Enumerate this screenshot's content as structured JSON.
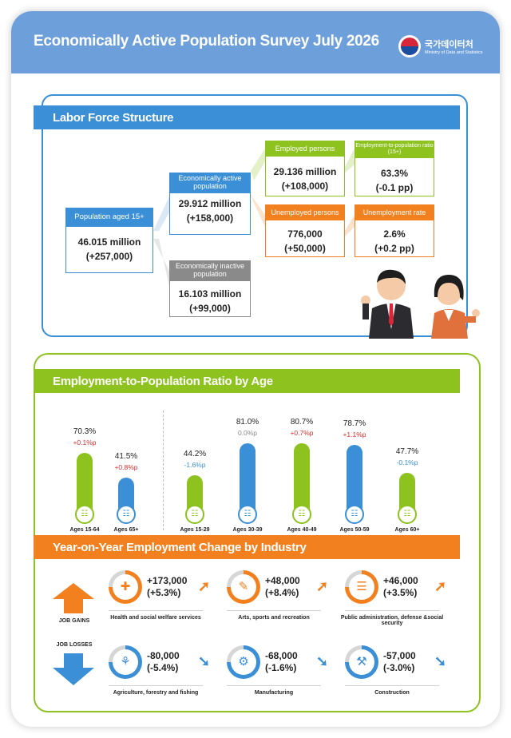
{
  "header": {
    "title": "Economically Active Population Survey July 2026",
    "logo_ko": "국가데이터처",
    "logo_en": "Ministry of Data and Statistics"
  },
  "labor": {
    "section_title": "Labor Force Structure",
    "pop15": {
      "label": "Population aged 15+",
      "value": "46.015 million",
      "change": "(+257,000)"
    },
    "active": {
      "label": "Economically active population",
      "value": "29.912 million",
      "change": "(+158,000)"
    },
    "inactive": {
      "label": "Economically inactive population",
      "value": "16.103 million",
      "change": "(+99,000)"
    },
    "employed": {
      "label": "Employed persons",
      "value": "29.136 million",
      "change": "(+108,000)"
    },
    "emp_ratio": {
      "label": "Employment-to-population ratio (15+)",
      "value": "63.3%",
      "change": "(-0.1 pp)"
    },
    "unemployed": {
      "label": "Unemployed persons",
      "value": "776,000",
      "change": "(+50,000)"
    },
    "unemp_rate": {
      "label": "Unemployment rate",
      "value": "2.6%",
      "change": "(+0.2 pp)"
    }
  },
  "age_section": {
    "title": "Employment-to-Population Ratio by Age"
  },
  "chart_data": {
    "type": "bar",
    "categories": [
      "Ages 15-64",
      "Ages 65+",
      "Ages 15-29",
      "Ages 30-39",
      "Ages 40-49",
      "Ages 50-59",
      "Ages 60+"
    ],
    "values": [
      70.3,
      41.5,
      44.2,
      81.0,
      80.7,
      78.7,
      47.7
    ],
    "value_labels": [
      "70.3%",
      "41.5%",
      "44.2%",
      "81.0%",
      "80.7%",
      "78.7%",
      "47.7%"
    ],
    "changes": [
      "+0.1%p",
      "+0.8%p",
      "-1.6%p",
      "0.0%p",
      "+0.7%p",
      "+1.1%p",
      "-0.1%p"
    ],
    "colors": [
      "#8dc21f",
      "#3a8fd6",
      "#8dc21f",
      "#3a8fd6",
      "#8dc21f",
      "#3a8fd6",
      "#8dc21f"
    ],
    "change_colors": [
      "#d62f2f",
      "#d62f2f",
      "#3a8fd6",
      "#888888",
      "#d62f2f",
      "#d62f2f",
      "#3a8fd6"
    ],
    "ylim": [
      0,
      100
    ]
  },
  "industry": {
    "section_title": "Year-on-Year Employment Change by Industry",
    "gains_label": "JOB GAINS",
    "losses_label": "JOB LOSSES",
    "gains": [
      {
        "name": "Health and social welfare services",
        "value": "+173,000",
        "pct": "(+5.3%)",
        "icon": "first-aid-icon"
      },
      {
        "name": "Arts, sports and recreation",
        "value": "+48,000",
        "pct": "(+8.4%)",
        "icon": "palette-icon"
      },
      {
        "name": "Public administration, defense &social security",
        "value": "+46,000",
        "pct": "(+3.5%)",
        "icon": "document-icon"
      }
    ],
    "losses": [
      {
        "name": "Agriculture, forestry and fishing",
        "value": "-80,000",
        "pct": "(-5.4%)",
        "icon": "wheat-icon"
      },
      {
        "name": "Manufacturing",
        "value": "-68,000",
        "pct": "(-1.6%)",
        "icon": "gear-icon"
      },
      {
        "name": "Construction",
        "value": "-57,000",
        "pct": "(-3.0%)",
        "icon": "excavator-icon"
      }
    ]
  },
  "colors": {
    "header": "#6d9fda",
    "blue": "#3a8fd6",
    "green": "#8dc21f",
    "orange": "#f2801f",
    "gray": "#8a8a8a"
  }
}
